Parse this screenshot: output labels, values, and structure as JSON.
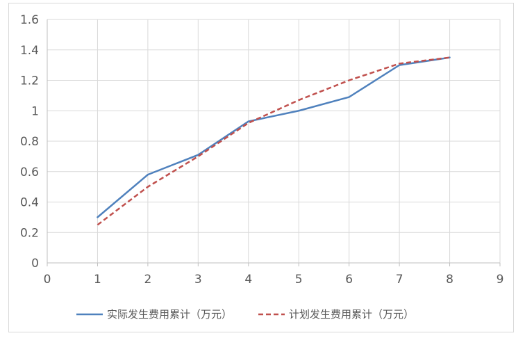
{
  "chart_data": {
    "type": "line",
    "x": [
      1,
      2,
      3,
      4,
      5,
      6,
      7,
      8
    ],
    "series": [
      {
        "name": "实际发生费用累计（万元）",
        "values": [
          0.3,
          0.58,
          0.71,
          0.93,
          1.0,
          1.09,
          1.3,
          1.35
        ],
        "color": "#4f81bd",
        "style": "solid"
      },
      {
        "name": "计划发生费用累计（万元）",
        "values": [
          0.25,
          0.5,
          0.7,
          0.92,
          1.07,
          1.2,
          1.31,
          1.35
        ],
        "color": "#c0504d",
        "style": "dashed"
      }
    ],
    "xlim": [
      0,
      9
    ],
    "ylim": [
      0,
      1.6
    ],
    "x_ticks": [
      "0",
      "1",
      "2",
      "3",
      "4",
      "5",
      "6",
      "7",
      "8",
      "9"
    ],
    "y_ticks": [
      "0",
      "0.2",
      "0.4",
      "0.6",
      "0.8",
      "1",
      "1.2",
      "1.4",
      "1.6"
    ],
    "grid": true,
    "legend_position": "bottom"
  }
}
